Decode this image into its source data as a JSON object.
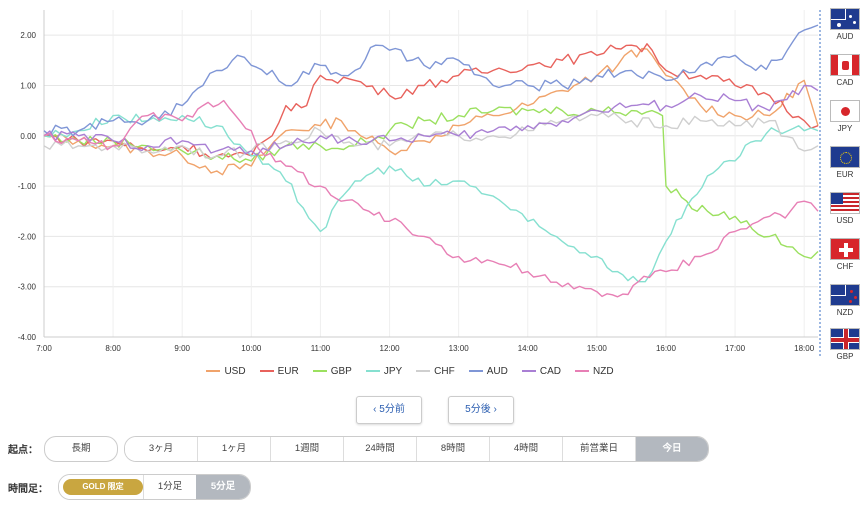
{
  "chart_data": {
    "type": "line",
    "x_ticks": [
      "7:00",
      "8:00",
      "9:00",
      "10:00",
      "11:00",
      "12:00",
      "13:00",
      "14:00",
      "15:00",
      "16:00",
      "17:00",
      "18:00"
    ],
    "y_ticks": [
      "2.00",
      "1.00",
      "0.00",
      "-1.00",
      "-2.00",
      "-3.00",
      "-4.00"
    ],
    "ylim": [
      -4,
      2.5
    ],
    "x_range_hours": [
      7.0,
      18.2
    ],
    "grid": true,
    "legend": "bottom",
    "series": [
      {
        "name": "USD",
        "color": "#f0a36b",
        "points": [
          [
            7.0,
            0.0
          ],
          [
            7.5,
            -0.1
          ],
          [
            8.0,
            -0.2
          ],
          [
            8.5,
            -0.3
          ],
          [
            9.0,
            -0.4
          ],
          [
            9.5,
            -0.7
          ],
          [
            10.0,
            -0.6
          ],
          [
            10.5,
            0.1
          ],
          [
            11.0,
            0.2
          ],
          [
            11.3,
            0.3
          ],
          [
            11.5,
            0.1
          ],
          [
            12.0,
            -0.3
          ],
          [
            12.5,
            -0.1
          ],
          [
            13.0,
            0.2
          ],
          [
            13.5,
            0.4
          ],
          [
            14.0,
            0.6
          ],
          [
            14.5,
            0.9
          ],
          [
            15.0,
            1.2
          ],
          [
            15.3,
            1.4
          ],
          [
            15.5,
            1.7
          ],
          [
            15.8,
            1.6
          ],
          [
            16.0,
            1.2
          ],
          [
            16.5,
            0.6
          ],
          [
            17.0,
            0.4
          ],
          [
            17.5,
            0.4
          ],
          [
            18.0,
            1.1
          ],
          [
            18.2,
            0.2
          ]
        ]
      },
      {
        "name": "EUR",
        "color": "#e8625c",
        "points": [
          [
            7.0,
            0.0
          ],
          [
            7.5,
            -0.1
          ],
          [
            8.0,
            -0.1
          ],
          [
            8.5,
            -0.3
          ],
          [
            9.0,
            -0.2
          ],
          [
            9.5,
            -0.4
          ],
          [
            10.0,
            -0.4
          ],
          [
            10.3,
            0.0
          ],
          [
            10.5,
            0.6
          ],
          [
            10.8,
            0.6
          ],
          [
            11.0,
            1.2
          ],
          [
            11.5,
            1.1
          ],
          [
            12.0,
            0.8
          ],
          [
            12.5,
            1.0
          ],
          [
            13.0,
            1.2
          ],
          [
            13.5,
            1.3
          ],
          [
            14.0,
            1.4
          ],
          [
            14.5,
            1.5
          ],
          [
            15.0,
            1.6
          ],
          [
            15.2,
            1.8
          ],
          [
            15.5,
            1.8
          ],
          [
            15.8,
            1.7
          ],
          [
            16.0,
            1.3
          ],
          [
            16.5,
            1.2
          ],
          [
            17.0,
            1.0
          ],
          [
            17.5,
            0.8
          ],
          [
            18.0,
            0.3
          ],
          [
            18.2,
            0.2
          ]
        ]
      },
      {
        "name": "GBP",
        "color": "#9be05f",
        "points": [
          [
            7.0,
            0.0
          ],
          [
            7.5,
            -0.1
          ],
          [
            8.0,
            -0.1
          ],
          [
            8.5,
            -0.2
          ],
          [
            9.0,
            -0.3
          ],
          [
            9.5,
            -0.4
          ],
          [
            10.0,
            -0.5
          ],
          [
            10.5,
            -0.2
          ],
          [
            11.0,
            -0.2
          ],
          [
            11.5,
            -0.2
          ],
          [
            12.0,
            0.1
          ],
          [
            12.5,
            0.3
          ],
          [
            13.0,
            0.4
          ],
          [
            13.5,
            0.5
          ],
          [
            14.0,
            0.5
          ],
          [
            14.5,
            0.5
          ],
          [
            15.0,
            0.5
          ],
          [
            15.5,
            0.5
          ],
          [
            15.8,
            0.5
          ],
          [
            15.95,
            0.4
          ],
          [
            16.0,
            -1.0
          ],
          [
            16.3,
            -1.3
          ],
          [
            16.6,
            -1.5
          ],
          [
            17.0,
            -1.6
          ],
          [
            17.5,
            -2.0
          ],
          [
            18.0,
            -2.4
          ],
          [
            18.2,
            -2.3
          ]
        ]
      },
      {
        "name": "JPY",
        "color": "#86e0d0",
        "points": [
          [
            7.0,
            0.0
          ],
          [
            7.5,
            0.1
          ],
          [
            8.0,
            0.4
          ],
          [
            8.5,
            0.3
          ],
          [
            9.0,
            0.4
          ],
          [
            9.5,
            0.2
          ],
          [
            10.0,
            -0.4
          ],
          [
            10.5,
            -0.9
          ],
          [
            11.0,
            -1.9
          ],
          [
            11.5,
            -0.9
          ],
          [
            12.0,
            -0.6
          ],
          [
            12.5,
            -1.0
          ],
          [
            13.0,
            -0.9
          ],
          [
            13.5,
            -1.2
          ],
          [
            14.0,
            -1.7
          ],
          [
            14.5,
            -2.1
          ],
          [
            15.0,
            -2.4
          ],
          [
            15.3,
            -2.7
          ],
          [
            15.6,
            -2.9
          ],
          [
            15.8,
            -2.7
          ],
          [
            16.0,
            -2.1
          ],
          [
            16.3,
            -1.4
          ],
          [
            16.6,
            -0.8
          ],
          [
            17.0,
            -0.5
          ],
          [
            17.3,
            -0.1
          ],
          [
            17.6,
            0.1
          ],
          [
            18.0,
            0.1
          ],
          [
            18.2,
            0.1
          ]
        ]
      },
      {
        "name": "CHF",
        "color": "#cfcfcf",
        "points": [
          [
            7.0,
            -0.2
          ],
          [
            7.5,
            -0.2
          ],
          [
            8.0,
            -0.2
          ],
          [
            8.5,
            -0.3
          ],
          [
            9.0,
            -0.2
          ],
          [
            9.5,
            -0.4
          ],
          [
            10.0,
            -0.3
          ],
          [
            10.5,
            -0.1
          ],
          [
            11.0,
            0.1
          ],
          [
            11.5,
            -0.2
          ],
          [
            12.0,
            -0.2
          ],
          [
            12.5,
            0.0
          ],
          [
            13.0,
            0.0
          ],
          [
            13.5,
            0.0
          ],
          [
            14.0,
            0.1
          ],
          [
            14.5,
            0.3
          ],
          [
            15.0,
            0.4
          ],
          [
            15.5,
            0.3
          ],
          [
            16.0,
            0.2
          ],
          [
            16.5,
            0.3
          ],
          [
            17.0,
            0.2
          ],
          [
            17.5,
            0.3
          ],
          [
            18.0,
            -0.3
          ],
          [
            18.2,
            -0.2
          ]
        ]
      },
      {
        "name": "AUD",
        "color": "#7f96d6",
        "points": [
          [
            7.0,
            0.1
          ],
          [
            7.5,
            0.1
          ],
          [
            8.0,
            0.3
          ],
          [
            8.5,
            0.3
          ],
          [
            9.0,
            0.6
          ],
          [
            9.3,
            1.0
          ],
          [
            9.5,
            1.3
          ],
          [
            9.8,
            1.6
          ],
          [
            10.0,
            1.4
          ],
          [
            10.3,
            1.3
          ],
          [
            10.5,
            1.0
          ],
          [
            11.0,
            1.4
          ],
          [
            11.3,
            1.2
          ],
          [
            11.5,
            1.3
          ],
          [
            11.8,
            1.8
          ],
          [
            12.0,
            1.7
          ],
          [
            12.5,
            1.4
          ],
          [
            13.0,
            1.5
          ],
          [
            13.3,
            1.2
          ],
          [
            13.5,
            1.0
          ],
          [
            14.0,
            1.0
          ],
          [
            14.5,
            1.0
          ],
          [
            15.0,
            1.2
          ],
          [
            15.5,
            1.3
          ],
          [
            16.0,
            1.1
          ],
          [
            16.5,
            1.4
          ],
          [
            17.0,
            1.6
          ],
          [
            17.3,
            1.3
          ],
          [
            17.6,
            1.5
          ],
          [
            18.0,
            2.1
          ],
          [
            18.2,
            2.2
          ]
        ]
      },
      {
        "name": "CAD",
        "color": "#a97fd4",
        "points": [
          [
            7.0,
            0.0
          ],
          [
            7.5,
            0.0
          ],
          [
            8.0,
            -0.1
          ],
          [
            8.5,
            -0.2
          ],
          [
            9.0,
            -0.1
          ],
          [
            9.5,
            -0.3
          ],
          [
            10.0,
            -0.3
          ],
          [
            10.5,
            -0.2
          ],
          [
            11.0,
            0.0
          ],
          [
            11.5,
            -0.1
          ],
          [
            12.0,
            -0.1
          ],
          [
            12.5,
            0.0
          ],
          [
            13.0,
            0.0
          ],
          [
            13.5,
            0.1
          ],
          [
            14.0,
            0.2
          ],
          [
            14.5,
            0.3
          ],
          [
            15.0,
            0.5
          ],
          [
            15.5,
            0.6
          ],
          [
            16.0,
            0.6
          ],
          [
            16.5,
            0.8
          ],
          [
            17.0,
            0.7
          ],
          [
            17.5,
            0.5
          ],
          [
            18.0,
            1.0
          ],
          [
            18.2,
            0.9
          ]
        ]
      },
      {
        "name": "NZD",
        "color": "#e77fb5",
        "points": [
          [
            7.0,
            0.0
          ],
          [
            7.5,
            -0.1
          ],
          [
            8.0,
            -0.2
          ],
          [
            8.5,
            0.4
          ],
          [
            9.0,
            0.3
          ],
          [
            9.3,
            0.6
          ],
          [
            9.6,
            0.7
          ],
          [
            10.0,
            0.1
          ],
          [
            10.2,
            -0.4
          ],
          [
            10.5,
            -0.6
          ],
          [
            11.0,
            -1.0
          ],
          [
            11.3,
            -1.3
          ],
          [
            11.7,
            -1.5
          ],
          [
            12.0,
            -1.7
          ],
          [
            12.5,
            -2.0
          ],
          [
            13.0,
            -2.4
          ],
          [
            13.5,
            -2.5
          ],
          [
            14.0,
            -2.7
          ],
          [
            14.5,
            -3.0
          ],
          [
            15.0,
            -3.1
          ],
          [
            15.3,
            -3.2
          ],
          [
            15.6,
            -2.9
          ],
          [
            16.0,
            -2.7
          ],
          [
            16.5,
            -2.4
          ],
          [
            17.0,
            -1.9
          ],
          [
            17.5,
            -1.6
          ],
          [
            17.8,
            -1.5
          ],
          [
            18.0,
            -1.3
          ],
          [
            18.2,
            -1.5
          ]
        ]
      }
    ]
  },
  "flags": [
    "AUD",
    "CAD",
    "JPY",
    "EUR",
    "USD",
    "CHF",
    "NZD",
    "GBP"
  ],
  "nav": {
    "prev": "‹ 5分前",
    "next": "5分後 ›"
  },
  "start_label": "起点：",
  "long_label": "長期",
  "range_buttons": [
    "3ヶ月",
    "1ヶ月",
    "1週間",
    "24時間",
    "8時間",
    "4時間",
    "前営業日",
    "今日"
  ],
  "interval_label": "時間足：",
  "gold_label": "GOLD 限定",
  "one_min": "1分足",
  "five_min": "5分足"
}
